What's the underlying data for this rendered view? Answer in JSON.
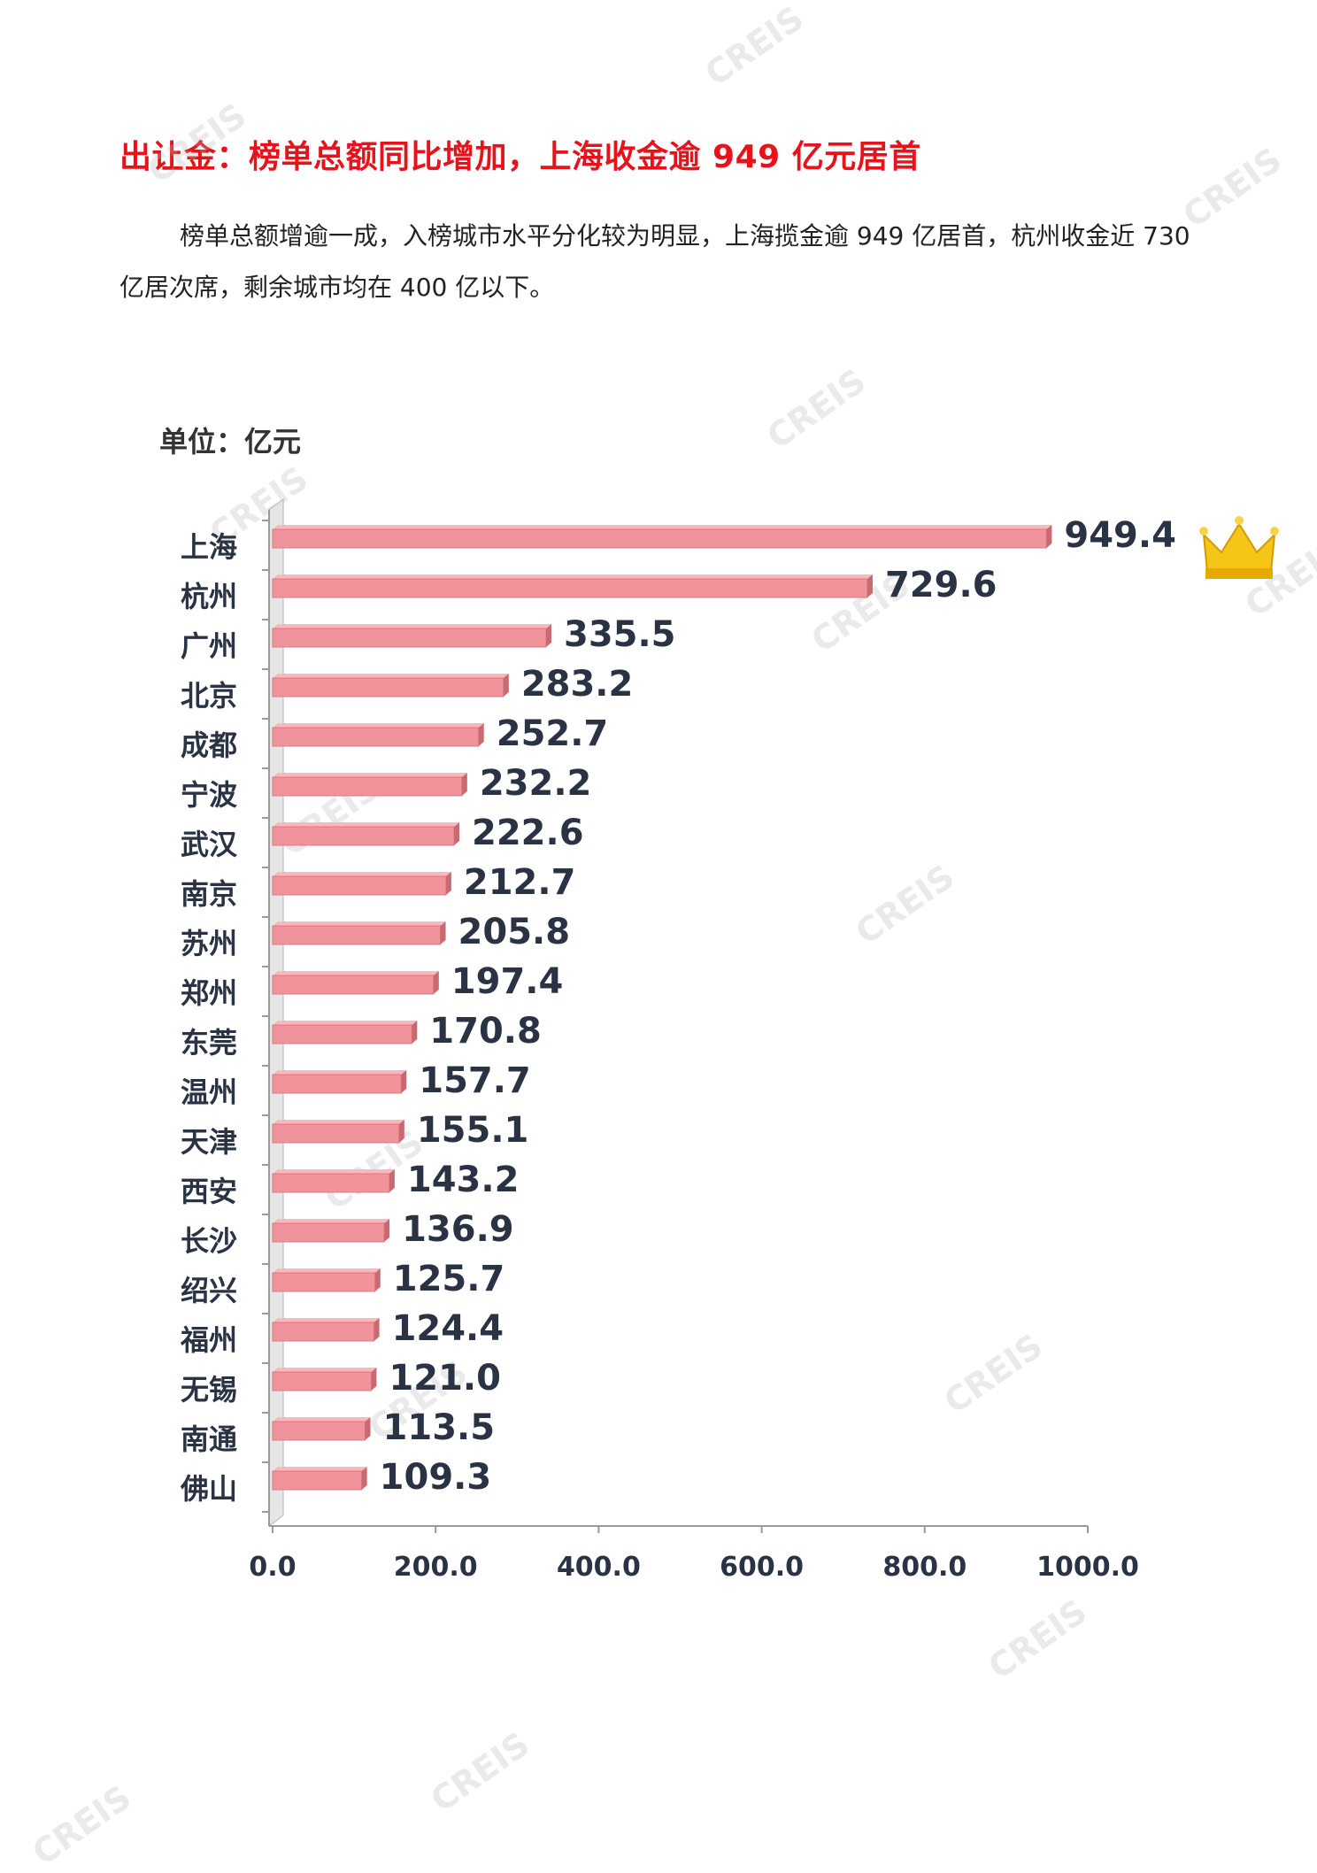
{
  "title": "出让金：榜单总额同比增加，上海收金逾 949 亿元居首",
  "intro": "榜单总额增逾一成，入榜城市水平分化较为明显，上海揽金逾 949 亿居首，杭州收金近 730 亿居次席，剩余城市均在 400 亿以下。",
  "watermark_text": "CREIS",
  "crown_icon": "gold-crown-icon",
  "colors": {
    "title": "#e8121b",
    "bar": "#f0939a",
    "bar_dark": "#c96a72",
    "label": "#2a3344",
    "crown": "#f5c518"
  },
  "chart_data": {
    "type": "bar",
    "orientation": "horizontal",
    "unit_label": "单位：亿元",
    "categories": [
      "上海",
      "杭州",
      "广州",
      "北京",
      "成都",
      "宁波",
      "武汉",
      "南京",
      "苏州",
      "郑州",
      "东莞",
      "温州",
      "天津",
      "西安",
      "长沙",
      "绍兴",
      "福州",
      "无锡",
      "南通",
      "佛山"
    ],
    "values": [
      949.4,
      729.6,
      335.5,
      283.2,
      252.7,
      232.2,
      222.6,
      212.7,
      205.8,
      197.4,
      170.8,
      157.7,
      155.1,
      143.2,
      136.9,
      125.7,
      124.4,
      121.0,
      113.5,
      109.3
    ],
    "value_labels": [
      "949.4",
      "729.6",
      "335.5",
      "283.2",
      "252.7",
      "232.2",
      "222.6",
      "212.7",
      "205.8",
      "197.4",
      "170.8",
      "157.7",
      "155.1",
      "143.2",
      "136.9",
      "125.7",
      "124.4",
      "121.0",
      "113.5",
      "109.3"
    ],
    "xlim": [
      0,
      1000
    ],
    "xticks": [
      0,
      200,
      400,
      600,
      800,
      1000
    ],
    "xtick_labels": [
      "0.0",
      "200.0",
      "400.0",
      "600.0",
      "800.0",
      "1000.0"
    ],
    "grid": false,
    "legend": "none"
  }
}
